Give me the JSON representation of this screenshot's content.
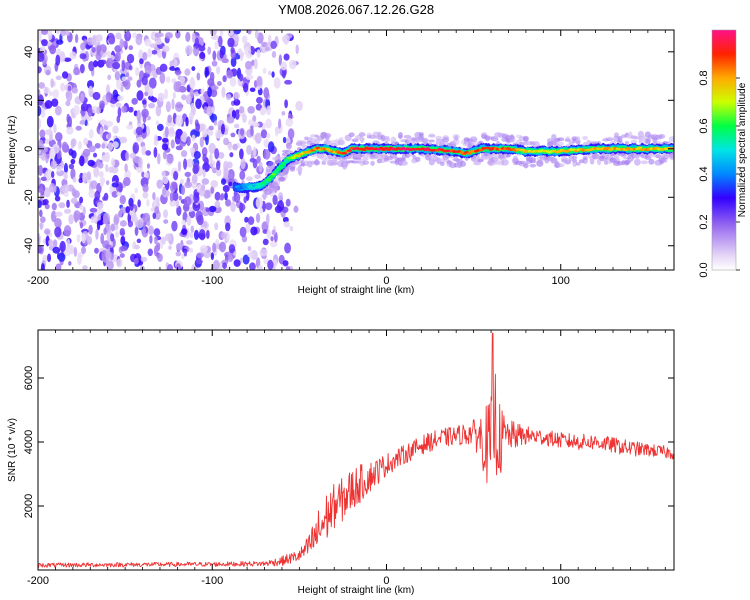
{
  "title": "YM08.2026.067.12.26.G28",
  "chart_data": [
    {
      "type": "heatmap",
      "name": "spectrogram",
      "xlabel": "Height of straight line (km)",
      "ylabel": "Frequency (Hz)",
      "xlim": [
        -200,
        165
      ],
      "ylim": [
        -50,
        49
      ],
      "xticks": [
        -200,
        -100,
        0,
        100
      ],
      "xtick_labels": [
        "-200",
        "-100",
        "0",
        "100"
      ],
      "yticks": [
        -40,
        -20,
        0,
        20,
        40
      ],
      "ytick_labels": [
        "-40",
        "-20",
        "0",
        "20",
        "40"
      ],
      "colorbar": {
        "label": "Normalized spectral amplitude",
        "range": [
          0,
          1
        ],
        "ticks": [
          0,
          0.2,
          0.4,
          0.6,
          0.8
        ],
        "tick_labels": [
          "0.0",
          "0.2",
          "0.4",
          "0.6",
          "0.8"
        ]
      },
      "ridge": {
        "x": [
          -87,
          -80,
          -75,
          -72,
          -68,
          -64,
          -60,
          -56,
          -52,
          -48,
          -44,
          -40,
          -35,
          -30,
          -25,
          -20,
          -10,
          0,
          20,
          40,
          45,
          55,
          60,
          70,
          80,
          100,
          120,
          140,
          165
        ],
        "y": [
          -16,
          -16,
          -15.5,
          -15,
          -13,
          -10,
          -7,
          -4,
          -3,
          -2,
          -1,
          0,
          0,
          -1,
          -2,
          0,
          0,
          0,
          0,
          -1,
          -2,
          0,
          0,
          0,
          -1,
          -1,
          0,
          0,
          0
        ],
        "amplitude": [
          0.35,
          0.45,
          0.5,
          0.55,
          0.6,
          0.6,
          0.55,
          0.6,
          0.7,
          0.75,
          0.8,
          0.85,
          0.85,
          0.8,
          0.85,
          0.9,
          0.95,
          0.95,
          0.95,
          0.9,
          0.85,
          0.9,
          0.9,
          0.85,
          0.75,
          0.75,
          0.8,
          0.8,
          0.75
        ]
      },
      "noise_region_x": [
        -200,
        -58
      ]
    },
    {
      "type": "line",
      "name": "snr",
      "xlabel": "Height of straight line (km)",
      "ylabel": "SNR (10 * v/v)",
      "xlim": [
        -200,
        165
      ],
      "ylim": [
        0,
        7500
      ],
      "xticks": [
        -200,
        -100,
        0,
        100
      ],
      "xtick_labels": [
        "-200",
        "-100",
        "0",
        "100"
      ],
      "yticks": [
        2000,
        4000,
        6000
      ],
      "ytick_labels": [
        "2000",
        "4000",
        "6000"
      ],
      "series_color": "#ee3333",
      "envelope": {
        "x": [
          -200,
          -140,
          -100,
          -70,
          -60,
          -50,
          -45,
          -40,
          -35,
          -30,
          -25,
          -20,
          -15,
          -10,
          0,
          10,
          20,
          30,
          40,
          50,
          55,
          60,
          62,
          65,
          70,
          80,
          90,
          100,
          110,
          120,
          130,
          140,
          150,
          165
        ],
        "mean": [
          150,
          170,
          180,
          200,
          280,
          450,
          700,
          1100,
          1600,
          2000,
          2200,
          2500,
          2700,
          2900,
          3300,
          3600,
          3900,
          4100,
          4200,
          4300,
          4100,
          3800,
          4800,
          4000,
          4200,
          4200,
          4150,
          4050,
          4000,
          4000,
          3900,
          3800,
          3750,
          3650
        ],
        "spread": [
          70,
          70,
          70,
          80,
          150,
          200,
          350,
          700,
          800,
          700,
          700,
          700,
          600,
          500,
          350,
          300,
          300,
          300,
          300,
          400,
          900,
          1600,
          1800,
          1200,
          500,
          300,
          250,
          250,
          250,
          250,
          250,
          250,
          200,
          200
        ]
      },
      "peak": {
        "x": 61,
        "y": 7400
      }
    }
  ]
}
